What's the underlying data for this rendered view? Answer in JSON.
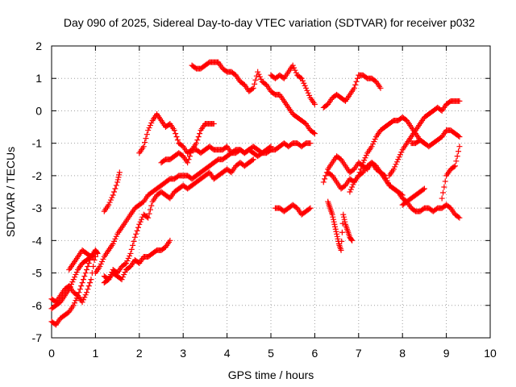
{
  "chart_data": {
    "type": "scatter",
    "title": "Day 090 of 2025, Sidereal Day-to-day VTEC variation (SDTVAR) for receiver p032",
    "xlabel": "GPS time / hours",
    "ylabel": "SDTVAR / TECUs",
    "xlim": [
      0,
      10
    ],
    "ylim": [
      -7,
      2
    ],
    "xticks": [
      "0",
      "1",
      "2",
      "3",
      "4",
      "5",
      "6",
      "7",
      "8",
      "9",
      "10"
    ],
    "yticks": [
      "2",
      "1",
      "0",
      "-1",
      "-2",
      "-3",
      "-4",
      "-5",
      "-6",
      "-7"
    ],
    "grid": true,
    "marker": "+",
    "color": "#ff0000",
    "series": [
      {
        "x": [
          0.0,
          0.1,
          0.2,
          0.3,
          0.4,
          0.5,
          0.6,
          0.7,
          0.8,
          0.9,
          1.0
        ],
        "y": [
          -5.8,
          -5.9,
          -5.7,
          -5.5,
          -5.4,
          -5.6,
          -5.7,
          -5.9,
          -5.6,
          -5.2,
          -4.4
        ]
      },
      {
        "x": [
          0.0,
          0.1,
          0.2,
          0.3,
          0.4,
          0.5,
          0.6,
          0.7,
          0.8,
          0.9,
          1.0
        ],
        "y": [
          -6.1,
          -6.0,
          -5.9,
          -5.7,
          -5.5,
          -5.2,
          -4.9,
          -4.7,
          -4.6,
          -4.5,
          -4.5
        ]
      },
      {
        "x": [
          0.0,
          0.1,
          0.2,
          0.3,
          0.4,
          0.5,
          0.6,
          0.7,
          0.8,
          0.9,
          1.0
        ],
        "y": [
          -6.5,
          -6.6,
          -6.4,
          -6.3,
          -6.2,
          -6.0,
          -5.7,
          -5.3,
          -4.9,
          -4.5,
          -4.3
        ]
      },
      {
        "x": [
          0.4,
          0.5,
          0.6,
          0.7,
          0.8,
          0.9,
          1.0,
          1.05
        ],
        "y": [
          -4.9,
          -4.7,
          -4.5,
          -4.3,
          -4.4,
          -4.5,
          -4.3,
          -4.4
        ]
      },
      {
        "x": [
          1.0,
          1.1,
          1.2,
          1.3,
          1.4,
          1.5,
          1.6,
          1.7,
          1.8,
          1.9,
          2.0,
          2.1,
          2.2,
          2.3,
          2.4,
          2.5,
          2.6,
          2.7,
          2.8,
          2.9,
          3.0,
          3.1,
          3.2,
          3.3,
          3.4,
          3.5,
          3.6,
          3.7,
          3.8,
          3.9,
          4.0,
          4.1,
          4.2,
          4.3,
          4.4,
          4.5,
          4.6,
          4.7,
          4.8,
          4.9,
          5.0,
          5.1,
          5.2,
          5.3,
          5.4,
          5.5,
          5.6,
          5.7,
          5.8,
          5.9
        ],
        "y": [
          -5.0,
          -4.8,
          -4.5,
          -4.3,
          -4.1,
          -3.8,
          -3.6,
          -3.4,
          -3.2,
          -3.0,
          -2.9,
          -2.8,
          -2.6,
          -2.5,
          -2.4,
          -2.3,
          -2.2,
          -2.1,
          -2.1,
          -2.0,
          -2.0,
          -2.0,
          -2.1,
          -2.0,
          -1.9,
          -1.8,
          -1.7,
          -1.6,
          -1.5,
          -1.5,
          -1.4,
          -1.3,
          -1.3,
          -1.2,
          -1.3,
          -1.2,
          -1.3,
          -1.4,
          -1.3,
          -1.3,
          -1.2,
          -1.2,
          -1.1,
          -1.0,
          -1.1,
          -1.0,
          -1.0,
          -1.1,
          -1.0,
          -1.0
        ]
      },
      {
        "x": [
          1.2,
          1.3,
          1.4,
          1.5,
          1.6,
          1.7,
          1.8,
          1.9,
          2.0,
          2.1,
          2.2,
          2.3,
          2.4,
          2.5,
          2.6,
          2.7,
          2.8,
          2.9,
          3.0,
          3.1,
          3.2,
          3.3,
          3.4,
          3.5,
          3.6,
          3.7,
          3.8,
          3.9,
          4.0,
          4.1,
          4.2,
          4.3,
          4.4,
          4.5,
          4.6
        ],
        "y": [
          -5.1,
          -5.2,
          -4.9,
          -5.0,
          -4.8,
          -4.7,
          -4.4,
          -3.9,
          -3.5,
          -3.2,
          -3.3,
          -2.8,
          -2.6,
          -2.5,
          -2.6,
          -2.7,
          -2.5,
          -2.4,
          -2.3,
          -2.4,
          -2.3,
          -2.2,
          -2.1,
          -2.0,
          -1.9,
          -2.1,
          -2.0,
          -1.9,
          -1.8,
          -1.9,
          -1.7,
          -1.6,
          -1.7,
          -1.6,
          -1.5
        ]
      },
      {
        "x": [
          1.2,
          1.3,
          1.4,
          1.5,
          1.6,
          1.7,
          1.8,
          1.9,
          2.0,
          2.1,
          2.2,
          2.3,
          2.4,
          2.5,
          2.6,
          2.7
        ],
        "y": [
          -5.3,
          -5.2,
          -5.0,
          -5.1,
          -5.2,
          -4.9,
          -4.8,
          -4.6,
          -4.7,
          -4.5,
          -4.5,
          -4.4,
          -4.3,
          -4.3,
          -4.2,
          -4.0
        ]
      },
      {
        "x": [
          1.2,
          1.3,
          1.4,
          1.5,
          1.55
        ],
        "y": [
          -3.1,
          -2.9,
          -2.6,
          -2.2,
          -1.9
        ]
      },
      {
        "x": [
          2.0,
          2.1,
          2.2,
          2.3,
          2.4,
          2.5,
          2.6,
          2.7,
          2.8,
          2.9,
          3.0,
          3.1,
          3.2,
          3.3,
          3.4,
          3.5,
          3.6,
          3.7,
          3.8,
          3.9,
          4.0,
          4.1,
          4.2,
          4.3,
          4.4,
          4.5,
          4.6,
          4.7,
          4.8,
          4.9,
          5.0
        ],
        "y": [
          -1.3,
          -1.1,
          -0.6,
          -0.3,
          -0.1,
          -0.3,
          -0.5,
          -0.4,
          -0.6,
          -1.0,
          -1.1,
          -1.3,
          -1.2,
          -1.2,
          -1.3,
          -1.2,
          -1.1,
          -1.2,
          -1.2,
          -1.2,
          -1.1,
          -1.3,
          -1.2,
          -1.2,
          -1.3,
          -1.2,
          -1.1,
          -1.2,
          -1.3,
          -1.2,
          -1.1
        ]
      },
      {
        "x": [
          2.5,
          2.6,
          2.7,
          2.8,
          2.9,
          3.0,
          3.1,
          3.2,
          3.3,
          3.4,
          3.5,
          3.6,
          3.7
        ],
        "y": [
          -1.6,
          -1.5,
          -1.5,
          -1.4,
          -1.3,
          -1.4,
          -1.6,
          -1.2,
          -1.0,
          -0.6,
          -0.4,
          -0.4,
          -0.4
        ]
      },
      {
        "x": [
          3.2,
          3.3,
          3.4,
          3.5,
          3.6,
          3.7,
          3.8,
          3.9,
          4.0,
          4.1,
          4.2,
          4.3,
          4.4,
          4.5,
          4.6,
          4.7,
          4.8,
          4.9,
          5.0,
          5.1,
          5.2,
          5.3,
          5.4,
          5.5,
          5.6,
          5.7,
          5.8,
          5.9,
          6.0
        ],
        "y": [
          1.4,
          1.3,
          1.3,
          1.4,
          1.5,
          1.5,
          1.5,
          1.3,
          1.2,
          1.2,
          1.1,
          0.9,
          0.8,
          0.6,
          0.7,
          1.2,
          0.9,
          0.8,
          0.6,
          0.5,
          0.5,
          0.3,
          0.1,
          -0.1,
          -0.2,
          -0.3,
          -0.4,
          -0.6,
          -0.7
        ]
      },
      {
        "x": [
          5.0,
          5.1,
          5.2,
          5.3,
          5.4,
          5.5,
          5.6,
          5.7,
          5.8,
          5.9,
          6.0
        ],
        "y": [
          1.1,
          1.0,
          1.1,
          1.0,
          1.2,
          1.4,
          1.1,
          1.0,
          0.7,
          0.4,
          0.2
        ]
      },
      {
        "x": [
          5.1,
          5.2,
          5.3,
          5.4,
          5.5,
          5.6,
          5.7,
          5.8,
          5.9
        ],
        "y": [
          -3.0,
          -3.0,
          -3.1,
          -3.0,
          -2.9,
          -3.0,
          -3.2,
          -3.1,
          -3.0
        ]
      },
      {
        "x": [
          6.2,
          6.3,
          6.4,
          6.5,
          6.6,
          6.7,
          6.8,
          6.9,
          7.0,
          7.1,
          7.2,
          7.3,
          7.4,
          7.5
        ],
        "y": [
          0.1,
          0.2,
          0.4,
          0.5,
          0.4,
          0.3,
          0.5,
          0.7,
          1.1,
          1.1,
          1.0,
          1.0,
          0.9,
          0.7
        ]
      },
      {
        "x": [
          6.3,
          6.35,
          6.4,
          6.45,
          6.5,
          6.55,
          6.6,
          6.65,
          6.7,
          6.75,
          6.8,
          6.85
        ],
        "y": [
          -2.8,
          -3.0,
          -3.2,
          -3.5,
          -3.8,
          -4.1,
          -4.3,
          -3.2,
          -3.5,
          -3.7,
          -3.9,
          -4.0
        ]
      },
      {
        "x": [
          6.2,
          6.3,
          6.4,
          6.5,
          6.6,
          6.7,
          6.8,
          6.9,
          7.0,
          7.1,
          7.2,
          7.3,
          7.4,
          7.5,
          7.6,
          7.7,
          7.8,
          7.9,
          8.0,
          8.1,
          8.2,
          8.3,
          8.4,
          8.5
        ],
        "y": [
          -2.2,
          -1.8,
          -1.6,
          -1.4,
          -1.5,
          -1.7,
          -1.9,
          -1.8,
          -1.6,
          -1.7,
          -1.8,
          -1.6,
          -1.7,
          -1.9,
          -2.1,
          -2.3,
          -2.4,
          -2.5,
          -2.7,
          -2.8,
          -2.7,
          -2.6,
          -2.5,
          -2.4
        ]
      },
      {
        "x": [
          6.3,
          6.4,
          6.5,
          6.6,
          6.7,
          6.8,
          6.9,
          7.0,
          7.1,
          7.2,
          7.3,
          7.4,
          7.5,
          7.6,
          7.7,
          7.8,
          7.9,
          8.0
        ],
        "y": [
          -1.9,
          -2.0,
          -2.2,
          -2.4,
          -2.3,
          -2.1,
          -2.2,
          -2.0,
          -1.9,
          -1.7,
          -1.6,
          -1.8,
          -1.9,
          -2.0,
          -2.3,
          -2.4,
          -2.5,
          -2.6
        ]
      },
      {
        "x": [
          6.8,
          6.9,
          7.0,
          7.1,
          7.2,
          7.3,
          7.4,
          7.5,
          7.6,
          7.7,
          7.8,
          7.9,
          8.0,
          8.1,
          8.2,
          8.3,
          8.4,
          8.5
        ],
        "y": [
          -2.5,
          -2.2,
          -2.0,
          -1.6,
          -1.3,
          -1.1,
          -0.8,
          -0.6,
          -0.5,
          -0.4,
          -0.3,
          -0.3,
          -0.2,
          -0.3,
          -0.5,
          -0.7,
          -0.9,
          -1.0
        ]
      },
      {
        "x": [
          7.7,
          7.8,
          7.9,
          8.0,
          8.1,
          8.2,
          8.3,
          8.4,
          8.5,
          8.6,
          8.7,
          8.8,
          8.9,
          9.0,
          9.1,
          9.2,
          9.3
        ],
        "y": [
          -2.0,
          -1.8,
          -1.5,
          -1.2,
          -1.0,
          -0.8,
          -0.6,
          -0.4,
          -0.2,
          -0.1,
          0.0,
          0.1,
          0.0,
          0.2,
          0.3,
          0.3,
          0.3
        ]
      },
      {
        "x": [
          8.0,
          8.1,
          8.2,
          8.3,
          8.4,
          8.5,
          8.6,
          8.7,
          8.8,
          8.9,
          9.0,
          9.1,
          9.2,
          9.3
        ],
        "y": [
          -2.9,
          -2.8,
          -3.0,
          -3.1,
          -3.1,
          -3.0,
          -3.0,
          -3.1,
          -3.0,
          -3.0,
          -2.9,
          -3.0,
          -3.2,
          -3.3
        ]
      },
      {
        "x": [
          8.2,
          8.3,
          8.4,
          8.5,
          8.6,
          8.7,
          8.8,
          8.9,
          9.0,
          9.1,
          9.2,
          9.3
        ],
        "y": [
          -1.0,
          -1.0,
          -0.9,
          -1.0,
          -1.1,
          -1.0,
          -0.9,
          -0.8,
          -0.6,
          -0.6,
          -0.7,
          -0.8
        ]
      },
      {
        "x": [
          8.9,
          9.0,
          9.1,
          9.2,
          9.3
        ],
        "y": [
          -2.7,
          -2.0,
          -1.8,
          -1.7,
          -1.1
        ]
      }
    ]
  }
}
